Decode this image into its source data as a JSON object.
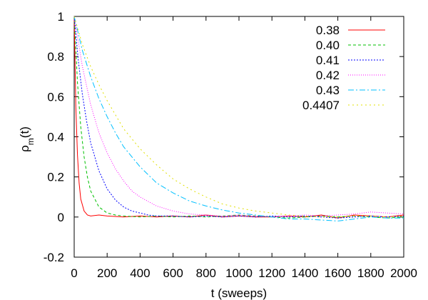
{
  "chart_data": {
    "type": "line",
    "xlabel": "t (sweeps)",
    "ylabel_base": "ρ",
    "ylabel_sub": "m",
    "ylabel_tail": "(t)",
    "xlim": [
      0,
      2000
    ],
    "ylim": [
      -0.2,
      1
    ],
    "xticks": [
      0,
      200,
      400,
      600,
      800,
      1000,
      1200,
      1400,
      1600,
      1800,
      2000
    ],
    "yticks": [
      -0.2,
      0,
      0.2,
      0.4,
      0.6,
      0.8,
      1
    ],
    "grid": false,
    "legend_position": "top-right",
    "series": [
      {
        "name": "0.38",
        "color": "#ff0000",
        "dash": "",
        "x": [
          0,
          10,
          20,
          30,
          40,
          60,
          80,
          100,
          150,
          200,
          300,
          400,
          500,
          600,
          700,
          800,
          900,
          1000,
          1100,
          1200,
          1300,
          1400,
          1500,
          1600,
          1700,
          1800,
          1900,
          2000
        ],
        "y": [
          1.0,
          0.55,
          0.31,
          0.17,
          0.09,
          0.03,
          0.01,
          0.005,
          0.01,
          0.005,
          0.0,
          0.005,
          0.0,
          0.005,
          0.0,
          0.01,
          0.0,
          0.005,
          0.0,
          0.0,
          0.005,
          0.0,
          0.01,
          -0.005,
          0.01,
          0.005,
          0.0,
          0.01
        ]
      },
      {
        "name": "0.40",
        "color": "#00c000",
        "dash": "4,3",
        "x": [
          0,
          20,
          40,
          60,
          80,
          100,
          150,
          200,
          250,
          300,
          400,
          500,
          600,
          700,
          800,
          900,
          1000,
          1100,
          1200,
          1300,
          1400,
          1500,
          1600,
          1700,
          1800,
          1900,
          2000
        ],
        "y": [
          1.0,
          0.67,
          0.45,
          0.3,
          0.2,
          0.13,
          0.05,
          0.02,
          0.01,
          0.005,
          0.0,
          0.005,
          0.0,
          0.005,
          0.0,
          0.005,
          0.01,
          0.005,
          0.0,
          -0.005,
          0.0,
          0.005,
          0.0,
          0.005,
          0.0,
          -0.005,
          0.0
        ]
      },
      {
        "name": "0.41",
        "color": "#0000ff",
        "dash": "2,2",
        "x": [
          0,
          25,
          50,
          75,
          100,
          150,
          200,
          250,
          300,
          350,
          400,
          450,
          500,
          600,
          700,
          800,
          900,
          1000,
          1100,
          1200,
          1300,
          1400,
          1500,
          1600,
          1700,
          1800,
          1900,
          2000
        ],
        "y": [
          1.0,
          0.78,
          0.61,
          0.48,
          0.37,
          0.23,
          0.14,
          0.085,
          0.05,
          0.03,
          0.02,
          0.01,
          0.005,
          0.005,
          0.0,
          0.005,
          0.0,
          0.005,
          0.0,
          0.005,
          0.0,
          0.005,
          0.0,
          -0.005,
          0.0,
          0.005,
          0.0,
          0.005
        ]
      },
      {
        "name": "0.42",
        "color": "#ff00ff",
        "dash": "1,2",
        "x": [
          0,
          50,
          100,
          150,
          200,
          250,
          300,
          350,
          400,
          500,
          600,
          700,
          800,
          900,
          1000,
          1100,
          1200,
          1300,
          1400,
          1500,
          1600,
          1700,
          1800,
          1900,
          2000
        ],
        "y": [
          1.0,
          0.75,
          0.56,
          0.42,
          0.32,
          0.24,
          0.18,
          0.13,
          0.1,
          0.055,
          0.03,
          0.015,
          0.01,
          0.005,
          0.01,
          0.005,
          0.0,
          0.005,
          0.01,
          0.005,
          0.01,
          0.015,
          0.025,
          0.02,
          0.015
        ]
      },
      {
        "name": "0.43",
        "color": "#00c0ff",
        "dash": "8,3,2,3",
        "x": [
          0,
          50,
          100,
          150,
          200,
          250,
          300,
          400,
          500,
          600,
          700,
          800,
          900,
          1000,
          1100,
          1200,
          1300,
          1400,
          1500,
          1600,
          1700,
          1800,
          1900,
          2000
        ],
        "y": [
          1.0,
          0.83,
          0.7,
          0.59,
          0.5,
          0.42,
          0.35,
          0.25,
          0.17,
          0.12,
          0.08,
          0.055,
          0.035,
          0.02,
          0.01,
          0.0,
          -0.01,
          -0.01,
          -0.015,
          -0.02,
          -0.01,
          0.0,
          -0.005,
          -0.005
        ]
      },
      {
        "name": "0.4407",
        "color": "#e0e000",
        "dash": "2,4",
        "x": [
          0,
          50,
          100,
          150,
          200,
          300,
          400,
          500,
          600,
          700,
          800,
          900,
          1000,
          1100,
          1200,
          1300,
          1400,
          1500,
          1600,
          1700,
          1800,
          1900,
          2000
        ],
        "y": [
          1.0,
          0.86,
          0.75,
          0.66,
          0.58,
          0.44,
          0.34,
          0.26,
          0.19,
          0.14,
          0.1,
          0.065,
          0.045,
          0.03,
          0.02,
          0.01,
          0.005,
          0.0,
          0.0,
          0.005,
          0.005,
          0.0,
          0.005
        ]
      }
    ]
  }
}
